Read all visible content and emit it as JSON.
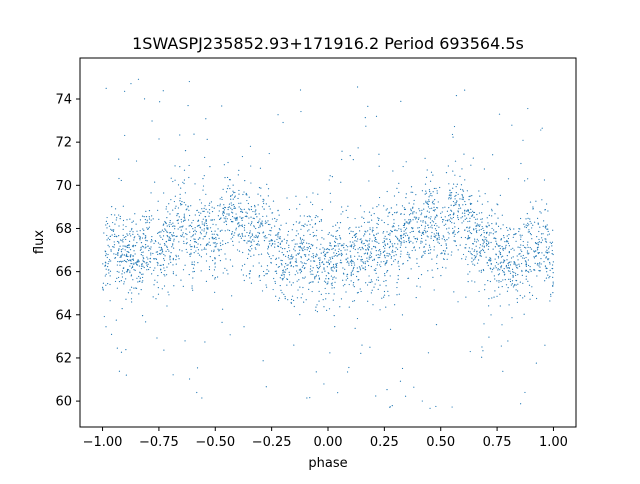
{
  "chart_data": {
    "type": "scatter",
    "title": "1SWASPJ235852.93+171916.2 Period 693564.5s",
    "xlabel": "phase",
    "ylabel": "flux",
    "xlim": [
      -1.1,
      1.1
    ],
    "ylim": [
      58.8,
      75.9
    ],
    "grid": false,
    "marker_color": "#1f77b4",
    "x_ticks": [
      -1.0,
      -0.75,
      -0.5,
      -0.25,
      0.0,
      0.25,
      0.5,
      0.75,
      1.0
    ],
    "x_tick_labels": [
      "−1.00",
      "−0.75",
      "−0.50",
      "−0.25",
      "0.00",
      "0.25",
      "0.50",
      "0.75",
      "1.00"
    ],
    "y_ticks": [
      60,
      62,
      64,
      66,
      68,
      70,
      72,
      74
    ],
    "y_tick_labels": [
      "60",
      "62",
      "64",
      "66",
      "68",
      "70",
      "72",
      "74"
    ],
    "series": [
      {
        "x_range": [
          -1.0,
          1.0
        ],
        "description_of_trend": [
          [
            -1.0,
            66.5
          ],
          [
            -0.95,
            67.3
          ],
          [
            -0.9,
            67.0
          ],
          [
            -0.85,
            66.5
          ],
          [
            -0.8,
            67.5
          ],
          [
            -0.75,
            66.8
          ],
          [
            -0.7,
            67.5
          ],
          [
            -0.65,
            68.3
          ],
          [
            -0.6,
            67.2
          ],
          [
            -0.55,
            68.5
          ],
          [
            -0.5,
            67.0
          ],
          [
            -0.45,
            68.8
          ],
          [
            -0.4,
            68.5
          ],
          [
            -0.35,
            67.5
          ],
          [
            -0.3,
            68.0
          ],
          [
            -0.25,
            67.3
          ],
          [
            -0.2,
            66.5
          ],
          [
            -0.15,
            66.2
          ],
          [
            -0.1,
            67.0
          ],
          [
            -0.05,
            66.8
          ],
          [
            0.0,
            66.0
          ],
          [
            0.05,
            67.0
          ],
          [
            0.1,
            66.5
          ],
          [
            0.15,
            66.8
          ],
          [
            0.2,
            67.0
          ],
          [
            0.25,
            66.8
          ],
          [
            0.3,
            67.5
          ],
          [
            0.35,
            68.0
          ],
          [
            0.4,
            67.8
          ],
          [
            0.45,
            68.5
          ],
          [
            0.5,
            67.5
          ],
          [
            0.55,
            68.8
          ],
          [
            0.6,
            68.7
          ],
          [
            0.65,
            67.6
          ],
          [
            0.7,
            67.8
          ],
          [
            0.75,
            67.0
          ],
          [
            0.8,
            66.5
          ],
          [
            0.85,
            66.3
          ],
          [
            0.9,
            67.0
          ],
          [
            0.95,
            67.2
          ],
          [
            1.0,
            66.0
          ]
        ],
        "scatter_spread": 1.2,
        "outlier_range": [
          59.5,
          75.0
        ]
      }
    ]
  }
}
